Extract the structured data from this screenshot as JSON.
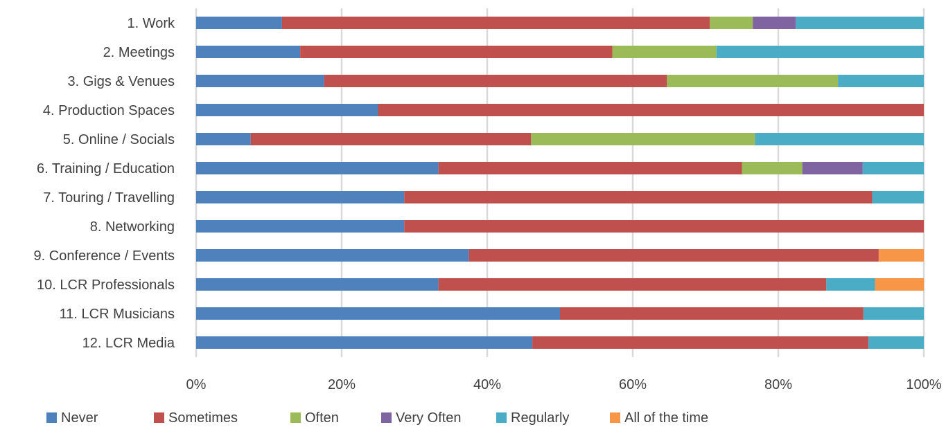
{
  "chart_data": {
    "type": "bar",
    "orientation": "horizontal",
    "stacked": "percent",
    "title": "",
    "xlabel": "",
    "ylabel": "",
    "xlim": [
      0,
      100
    ],
    "grid": true,
    "legend_position": "bottom",
    "x_ticks": [
      "0%",
      "20%",
      "40%",
      "60%",
      "80%",
      "100%"
    ],
    "x_tick_values": [
      0,
      20,
      40,
      60,
      80,
      100
    ],
    "categories": [
      "1. Work",
      "2. Meetings",
      "3. Gigs & Venues",
      "4. Production Spaces",
      "5. Online / Socials",
      "6. Training / Education",
      "7. Touring / Travelling",
      "8. Networking",
      "9. Conference / Events",
      "10. LCR Professionals",
      "11. LCR Musicians",
      "12. LCR Media"
    ],
    "series": [
      {
        "name": "Never",
        "color": "#4F81BD",
        "values": [
          11.8,
          14.3,
          17.6,
          25.0,
          7.5,
          33.3,
          28.6,
          28.6,
          37.5,
          33.3,
          50.0,
          46.2
        ]
      },
      {
        "name": "Sometimes",
        "color": "#C0504D",
        "values": [
          58.8,
          42.9,
          47.1,
          75.0,
          38.5,
          41.7,
          64.3,
          71.4,
          56.3,
          53.3,
          41.7,
          46.2
        ]
      },
      {
        "name": "Often",
        "color": "#9BBB59",
        "values": [
          5.9,
          14.3,
          23.5,
          0,
          30.8,
          8.3,
          0,
          0,
          0,
          0,
          0,
          0
        ]
      },
      {
        "name": "Very Often",
        "color": "#8064A2",
        "values": [
          5.9,
          0,
          0,
          0,
          0,
          8.3,
          0,
          0,
          0,
          0,
          0,
          0
        ]
      },
      {
        "name": "Regularly",
        "color": "#4BACC6",
        "values": [
          17.6,
          28.5,
          11.8,
          0,
          23.2,
          8.4,
          7.1,
          0,
          0,
          6.7,
          8.3,
          7.6
        ]
      },
      {
        "name": "All of the time",
        "color": "#F79646",
        "values": [
          0,
          0,
          0,
          0,
          0,
          0,
          0,
          0,
          6.2,
          6.7,
          0,
          0
        ]
      }
    ]
  }
}
